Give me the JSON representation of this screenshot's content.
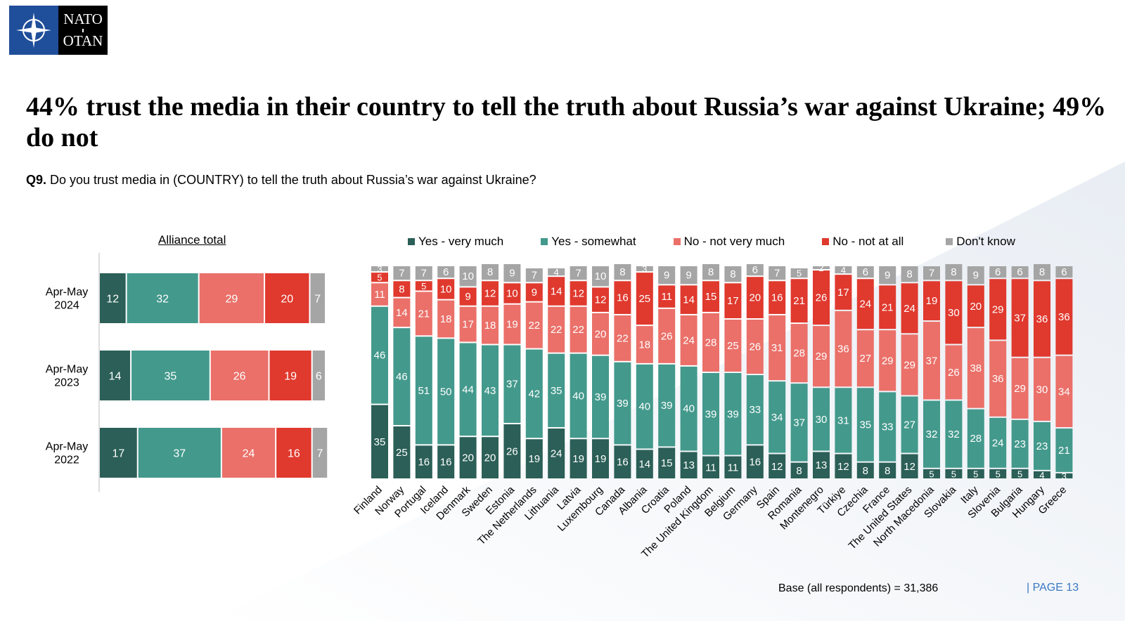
{
  "logo": {
    "line1": "NATO",
    "line2": "OTAN"
  },
  "title": "44% trust the media in their country to tell the truth about Russia’s war against Ukraine; 49% do not",
  "question": {
    "label": "Q9.",
    "text": " Do you trust media in (COUNTRY) to tell the truth about Russia’s war against Ukraine?"
  },
  "alliance_title": "Alliance total",
  "footer": {
    "base": "Base (all respondents) = 31,386",
    "page": "|  PAGE 13"
  },
  "colors": {
    "yes_very": "#2b5f57",
    "yes_somewhat": "#43998c",
    "no_not_very": "#ea7069",
    "no_not_at_all": "#e0392e",
    "dont_know": "#a5a5a5"
  },
  "chart_data": [
    {
      "type": "bar",
      "orientation": "horizontal-stacked",
      "title": "Alliance total",
      "categories": [
        "Apr-May 2024",
        "Apr-May 2023",
        "Apr-May 2022"
      ],
      "series": [
        {
          "name": "Yes - very much",
          "values": [
            12,
            14,
            17
          ]
        },
        {
          "name": "Yes - somewhat",
          "values": [
            32,
            35,
            37
          ]
        },
        {
          "name": "No - not very much",
          "values": [
            29,
            26,
            24
          ]
        },
        {
          "name": "No - not at all",
          "values": [
            20,
            19,
            16
          ]
        },
        {
          "name": "Don't know",
          "values": [
            7,
            6,
            7
          ]
        }
      ]
    },
    {
      "type": "bar",
      "orientation": "vertical-stacked",
      "legend": [
        "Yes - very much",
        "Yes - somewhat",
        "No - not very much",
        "No - not at all",
        "Don't know"
      ],
      "legend_position": "top",
      "categories": [
        "Finland",
        "Norway",
        "Portugal",
        "Iceland",
        "Denmark",
        "Sweden",
        "Estonia",
        "The Netherlands",
        "Lithuania",
        "Latvia",
        "Luxembourg",
        "Canada",
        "Albania",
        "Croatia",
        "Poland",
        "The United Kingdom",
        "Belgium",
        "Germany",
        "Spain",
        "Romania",
        "Montenegro",
        "Türkiye",
        "Czechia",
        "France",
        "The United States",
        "North Macedonia",
        "Slovakia",
        "Italy",
        "Slovenia",
        "Bulgaria",
        "Hungary",
        "Greece"
      ],
      "series": [
        {
          "name": "Yes - very much",
          "values": [
            35,
            25,
            16,
            16,
            20,
            20,
            26,
            19,
            24,
            19,
            19,
            16,
            14,
            15,
            13,
            11,
            11,
            16,
            12,
            8,
            13,
            12,
            8,
            8,
            12,
            5,
            5,
            5,
            5,
            5,
            4,
            3
          ]
        },
        {
          "name": "Yes - somewhat",
          "values": [
            46,
            46,
            51,
            50,
            44,
            43,
            37,
            42,
            35,
            40,
            39,
            39,
            40,
            39,
            40,
            39,
            39,
            33,
            34,
            37,
            30,
            31,
            35,
            33,
            27,
            32,
            32,
            28,
            24,
            23,
            23,
            21
          ]
        },
        {
          "name": "No - not very much",
          "values": [
            11,
            14,
            21,
            18,
            17,
            18,
            19,
            22,
            22,
            22,
            20,
            22,
            18,
            26,
            24,
            28,
            25,
            26,
            31,
            28,
            29,
            36,
            27,
            29,
            29,
            37,
            26,
            38,
            36,
            29,
            30,
            34
          ]
        },
        {
          "name": "No - not at all",
          "values": [
            5,
            8,
            5,
            10,
            9,
            12,
            10,
            9,
            14,
            12,
            12,
            16,
            25,
            11,
            14,
            15,
            17,
            20,
            16,
            21,
            26,
            17,
            24,
            21,
            24,
            19,
            30,
            20,
            29,
            37,
            36,
            36
          ]
        },
        {
          "name": "Don't know",
          "values": [
            3,
            7,
            7,
            6,
            10,
            8,
            9,
            7,
            4,
            7,
            10,
            8,
            3,
            9,
            9,
            8,
            8,
            6,
            7,
            5,
            2,
            4,
            6,
            9,
            8,
            7,
            8,
            9,
            6,
            6,
            8,
            6
          ]
        }
      ]
    }
  ]
}
